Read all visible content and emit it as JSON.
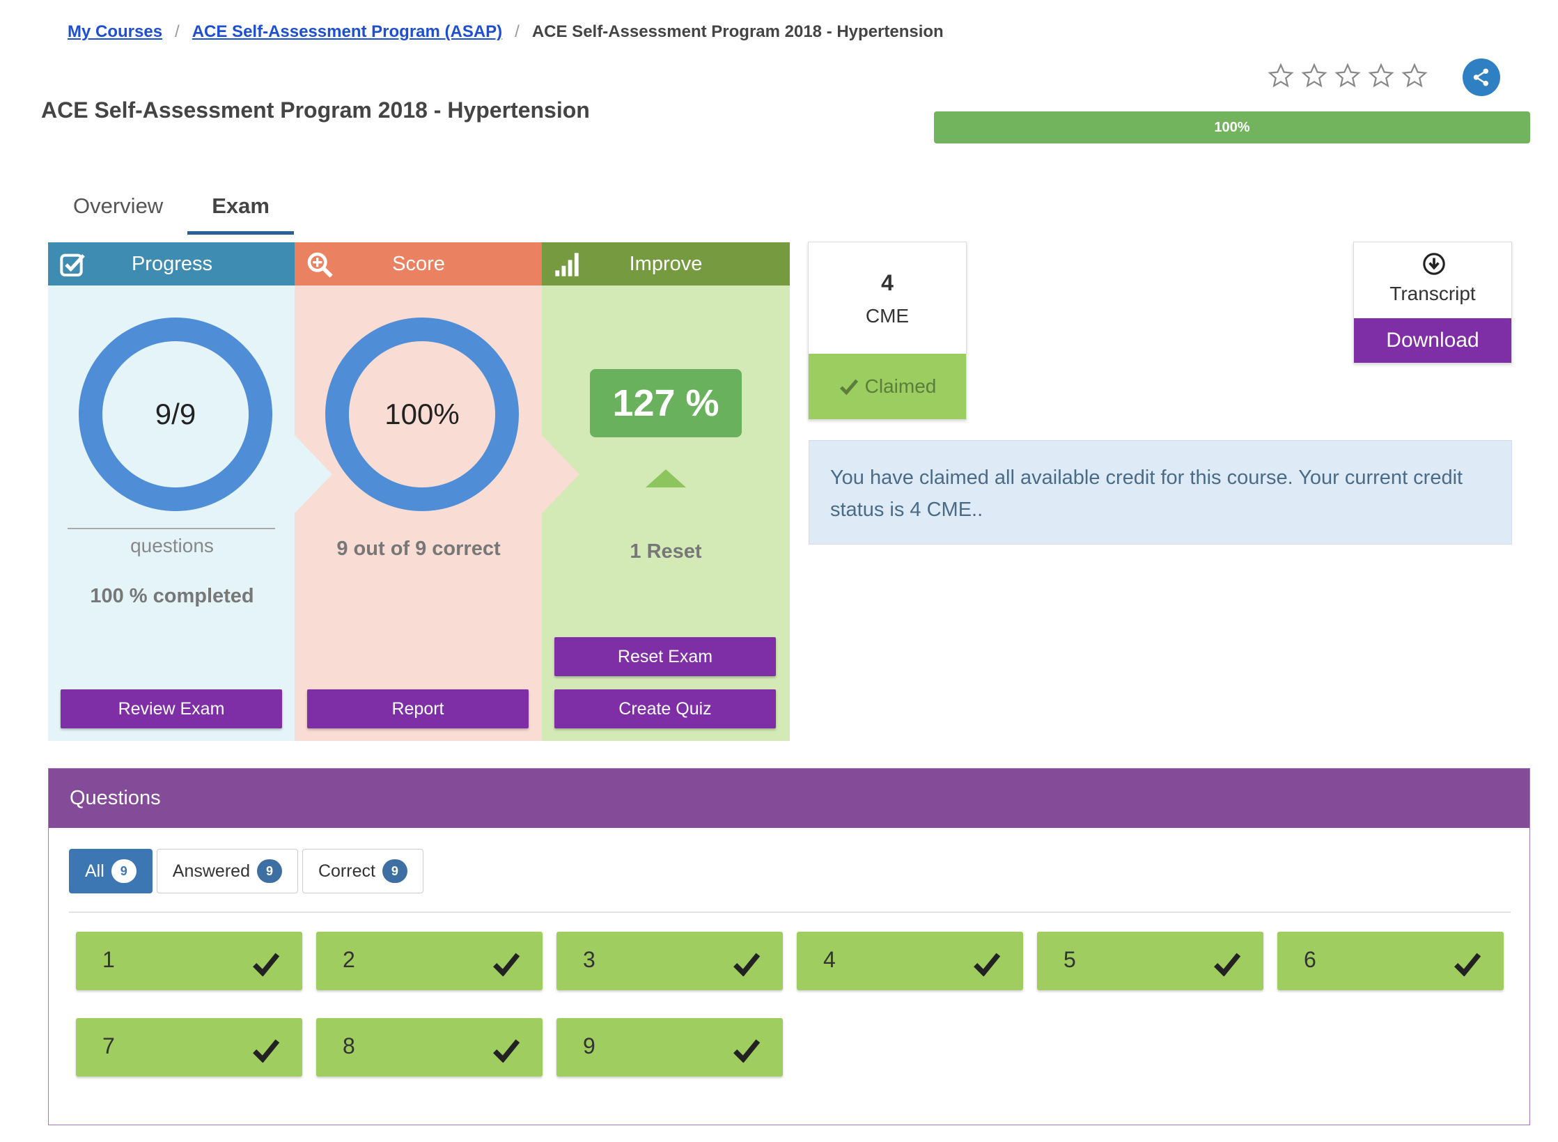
{
  "breadcrumb": {
    "items": [
      {
        "label": "My Courses"
      },
      {
        "label": "ACE Self-Assessment Program (ASAP)"
      },
      {
        "label": "ACE Self-Assessment Program 2018 - Hypertension"
      }
    ],
    "separator": "/"
  },
  "page": {
    "title": "ACE Self-Assessment Program 2018 - Hypertension"
  },
  "rating": {
    "stars_filled": 0,
    "stars_total": 5
  },
  "share": {
    "icon": "share-icon"
  },
  "course_progress": {
    "value": 100,
    "label": "100%",
    "color": "#72b35e"
  },
  "tabs": [
    {
      "label": "Overview",
      "active": false
    },
    {
      "label": "Exam",
      "active": true
    }
  ],
  "panels": {
    "progress": {
      "title": "Progress",
      "icon": "checkbox-icon",
      "ring_label": "9/9",
      "sub_label": "questions",
      "completed_label": "100 % completed",
      "button": "Review Exam",
      "color": "#3f8cb2"
    },
    "score": {
      "title": "Score",
      "icon": "magnifier-icon",
      "ring_label": "100%",
      "correct_label": "9 out of 9 correct",
      "button": "Report",
      "color": "#ea8160"
    },
    "improve": {
      "title": "Improve",
      "icon": "bar-signal-icon",
      "improvement": "127 %",
      "reset_label": "1 Reset",
      "buttons": {
        "reset": "Reset Exam",
        "quiz": "Create Quiz"
      },
      "color": "#759a3f"
    }
  },
  "cme": {
    "value": "4",
    "label": "CME",
    "status": "Claimed"
  },
  "transcript": {
    "label": "Transcript",
    "button": "Download",
    "icon": "download-circle-icon"
  },
  "info": {
    "message": "You have claimed all available credit for this course.  Your current credit status is 4 CME.."
  },
  "questions": {
    "title": "Questions",
    "filters": [
      {
        "label": "All",
        "count": "9",
        "active": true
      },
      {
        "label": "Answered",
        "count": "9",
        "active": false
      },
      {
        "label": "Correct",
        "count": "9",
        "active": false
      }
    ],
    "items": [
      "1",
      "2",
      "3",
      "4",
      "5",
      "6",
      "7",
      "8",
      "9"
    ]
  }
}
